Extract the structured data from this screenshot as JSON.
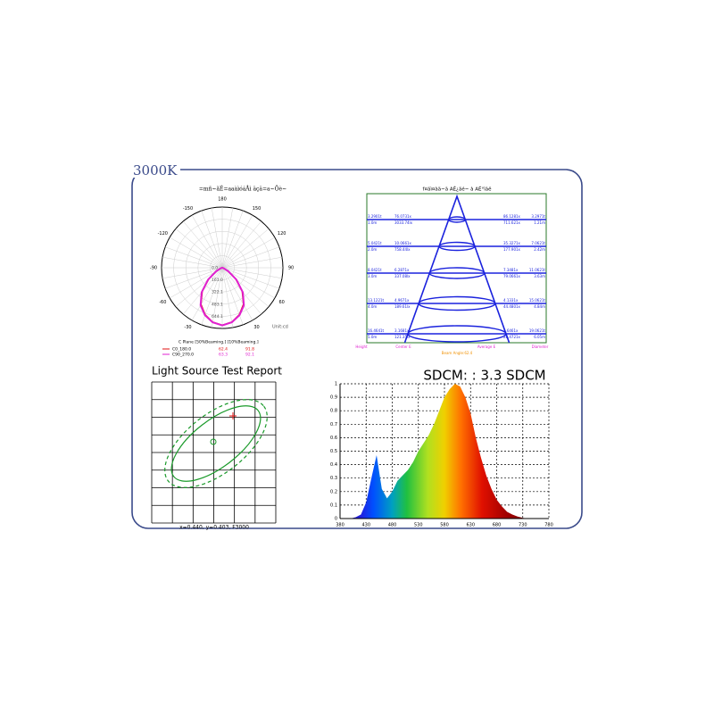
{
  "label": "3000K",
  "chart_data": [
    {
      "type": "polar",
      "title": "=mñ~ãÉ=aaàìóáÅì äçâ=a~Ôè~",
      "unit": "Unit:cd",
      "angle_ticks": [
        180,
        150,
        120,
        90,
        60,
        30,
        -30,
        -60,
        -90,
        -120,
        -150
      ],
      "rlim": [
        0,
        805.2
      ],
      "rticks": [
        {
          "value": 0,
          "label": "0.0"
        },
        {
          "value": 161,
          "label": "161.0"
        },
        322.1,
        483.1,
        644.1
      ],
      "legend_header": "C  Plane  [50%Beaming.]  [10%Beaming.]",
      "angles": [
        -90,
        -80,
        -70,
        -60,
        -50,
        -40,
        -30,
        -20,
        -10,
        0,
        10,
        20,
        30,
        40,
        50,
        60,
        70,
        80,
        90
      ],
      "series": [
        {
          "name": "C0_180.0",
          "color": "#e01010",
          "beam50": "62.4",
          "beam10": "91.8",
          "values": [
            0,
            4,
            18,
            85,
            230,
            410,
            560,
            660,
            730,
            760,
            730,
            660,
            560,
            410,
            230,
            85,
            18,
            4,
            0
          ]
        },
        {
          "name": "C90_270.0",
          "color": "#e020d0",
          "beam50": "63.3",
          "beam10": "92.1",
          "values": [
            0,
            5,
            22,
            95,
            245,
            425,
            575,
            670,
            735,
            765,
            735,
            670,
            575,
            425,
            245,
            95,
            22,
            5,
            0
          ]
        }
      ]
    },
    {
      "type": "cone",
      "title": "f¤äì¤àä~ã AÉ¿äé~ à AÉ°ìäë",
      "rows": [
        {
          "left_top": "3.2901t",
          "left_bottom": "1.0m",
          "center": "76.0731x",
          "center_bottom": "3033.74lx",
          "right_top": "86.1281x",
          "right_bottom": "711.621x",
          "far_top": "3.2971t",
          "far_bottom": "1.21m"
        },
        {
          "left_top": "5.0421t",
          "left_bottom": "2.0m",
          "center": "10.0661x",
          "center_bottom": "758.44lx",
          "right_top": "35.3271x",
          "right_bottom": "177.901x",
          "far_top": "7.0621t",
          "far_bottom": "2.42m"
        },
        {
          "left_top": "8.0421t",
          "left_bottom": "3.0m",
          "center": "6.2871x",
          "center_bottom": "337.08lx",
          "right_top": "7.3481x",
          "right_bottom": "79.0661x",
          "far_top": "11.0621t",
          "far_bottom": "3.63m"
        },
        {
          "left_top": "13.1221t",
          "left_bottom": "4.0m",
          "center": "4.9671x",
          "center_bottom": "189.61lx",
          "right_top": "4.1331x",
          "right_bottom": "44.4801x",
          "far_top": "15.0621t",
          "far_bottom": "4.84m"
        },
        {
          "left_top": "16.4641t",
          "left_bottom": "5.0m",
          "center": "3.1681x",
          "center_bottom": "121.35lx",
          "right_top": "2.6461x",
          "right_bottom": "28.4721x",
          "far_top": "19.0621t",
          "far_bottom": "6.05m"
        }
      ],
      "footer": [
        "Height",
        "Center E",
        "Average E",
        "Diameter"
      ],
      "beam_note": "Beam Angle:62.4"
    },
    {
      "type": "chromaticity",
      "title": "Light Source Test Report",
      "caption": "x=0.440, y=0.403, F3000"
    },
    {
      "type": "area",
      "title": "SDCM: :  3.3 SDCM",
      "x": [
        380,
        390,
        400,
        410,
        420,
        430,
        440,
        450,
        460,
        470,
        480,
        490,
        500,
        510,
        520,
        530,
        540,
        550,
        560,
        570,
        580,
        590,
        600,
        610,
        620,
        630,
        640,
        650,
        660,
        670,
        680,
        690,
        700,
        710,
        720,
        730,
        740,
        750,
        760,
        770,
        780
      ],
      "values": [
        0,
        0,
        0,
        0.01,
        0.03,
        0.12,
        0.3,
        0.47,
        0.22,
        0.15,
        0.2,
        0.28,
        0.32,
        0.36,
        0.42,
        0.5,
        0.56,
        0.62,
        0.7,
        0.8,
        0.9,
        0.96,
        1.0,
        0.98,
        0.9,
        0.78,
        0.6,
        0.45,
        0.32,
        0.22,
        0.14,
        0.09,
        0.05,
        0.03,
        0.015,
        0.005,
        0,
        0,
        0,
        0,
        0
      ],
      "xlim": [
        380,
        780
      ],
      "xticks": [
        380,
        430,
        480,
        530,
        580,
        630,
        680,
        730,
        780
      ],
      "ylim": [
        0,
        1
      ],
      "yticks": [
        0,
        0.1,
        0.2,
        0.3,
        0.4,
        0.5,
        0.6,
        0.7,
        0.8,
        0.9,
        1
      ],
      "grid": true
    }
  ]
}
